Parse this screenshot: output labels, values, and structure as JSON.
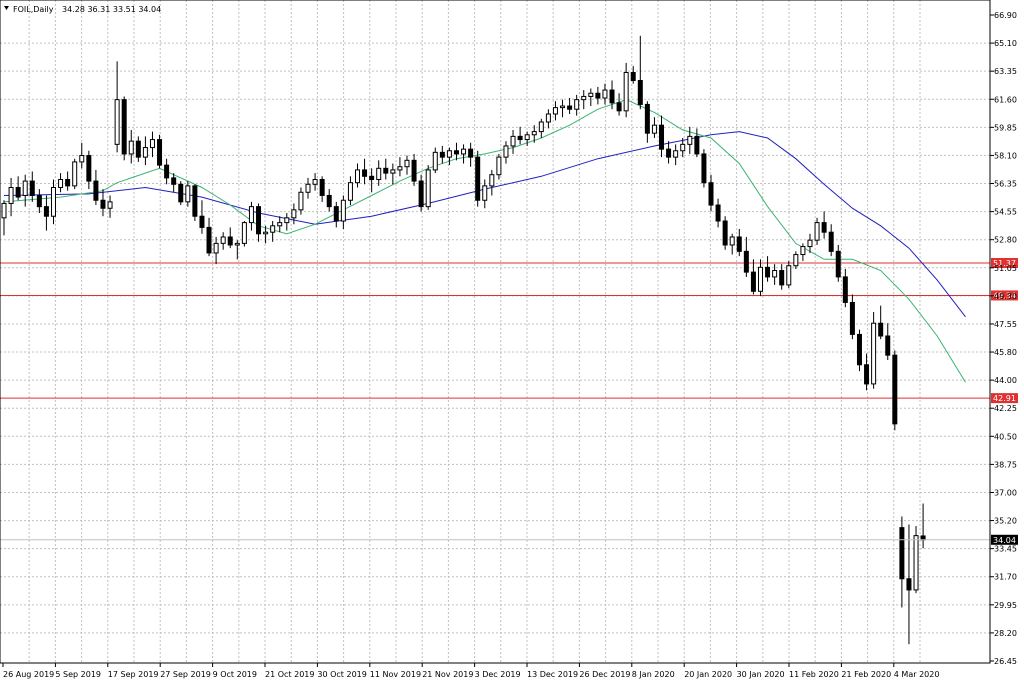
{
  "header": {
    "symbol_tf": "FOIL,Daily",
    "ohlc": "34.28 36.31 33.51 34.04"
  },
  "colors": {
    "background": "#ffffff",
    "grid": "#c0c0c0",
    "bull_body": "#ffffff",
    "bear_body": "#000000",
    "ma_fast": "#3cb371",
    "ma_slow": "#2020c0",
    "level_line": "#e03030",
    "current_price_line": "#c0c0c0",
    "current_price_label_bg": "#000000"
  },
  "chart_data": {
    "type": "candlestick",
    "ylim": [
      26.45,
      66.9
    ],
    "y_ticks": [
      "66.90",
      "65.10",
      "63.35",
      "61.60",
      "59.85",
      "58.10",
      "56.35",
      "54.55",
      "52.80",
      "51.05",
      "49.30",
      "47.55",
      "45.80",
      "44.00",
      "42.25",
      "40.50",
      "38.75",
      "37.00",
      "35.20",
      "33.45",
      "31.70",
      "29.95",
      "28.20",
      "26.45"
    ],
    "x_labels": [
      "26 Aug 2019",
      "5 Sep 2019",
      "17 Sep 2019",
      "27 Sep 2019",
      "9 Oct 2019",
      "21 Oct 2019",
      "30 Oct 2019",
      "11 Nov 2019",
      "21 Nov 2019",
      "3 Dec 2019",
      "13 Dec 2019",
      "26 Dec 2019",
      "8 Jan 2020",
      "20 Jan 2020",
      "30 Jan 2020",
      "11 Feb 2020",
      "21 Feb 2020",
      "4 Mar 2020"
    ],
    "grid": true,
    "levels": [
      {
        "value": 51.37,
        "label": "51.37"
      },
      {
        "value": 49.34,
        "label": "49.34"
      },
      {
        "value": 42.91,
        "label": "42.91"
      }
    ],
    "current_price": {
      "value": 34.04,
      "label": "34.04"
    },
    "candles": [
      [
        54.2,
        55.3,
        53.1,
        55.1
      ],
      [
        55.1,
        56.7,
        54.3,
        56.1
      ],
      [
        56.1,
        56.8,
        55.3,
        55.5
      ],
      [
        55.6,
        56.9,
        54.9,
        56.5
      ],
      [
        56.5,
        57.1,
        55.2,
        55.6
      ],
      [
        55.6,
        56.0,
        54.5,
        54.9
      ],
      [
        54.9,
        55.6,
        53.4,
        54.3
      ],
      [
        54.3,
        56.6,
        53.8,
        56.1
      ],
      [
        56.1,
        57.0,
        55.8,
        56.6
      ],
      [
        56.6,
        57.1,
        55.9,
        56.2
      ],
      [
        56.2,
        57.9,
        56.0,
        57.7
      ],
      [
        57.7,
        58.9,
        57.3,
        58.1
      ],
      [
        58.1,
        58.4,
        56.0,
        56.5
      ],
      [
        56.5,
        57.2,
        55.0,
        55.3
      ],
      [
        55.3,
        56.0,
        54.3,
        54.8
      ],
      [
        54.8,
        55.6,
        54.2,
        55.2
      ],
      [
        58.8,
        64.0,
        58.3,
        61.6
      ],
      [
        61.6,
        61.8,
        57.8,
        58.2
      ],
      [
        58.2,
        59.7,
        57.6,
        59.0
      ],
      [
        59.0,
        59.3,
        57.7,
        58.0
      ],
      [
        58.0,
        59.3,
        57.5,
        58.6
      ],
      [
        58.6,
        59.6,
        58.0,
        59.1
      ],
      [
        59.1,
        59.4,
        57.3,
        57.5
      ],
      [
        57.5,
        57.9,
        56.3,
        56.7
      ],
      [
        56.7,
        57.0,
        55.8,
        56.3
      ],
      [
        56.3,
        56.5,
        55.0,
        55.2
      ],
      [
        55.2,
        56.5,
        54.9,
        56.2
      ],
      [
        56.2,
        56.3,
        54.0,
        54.3
      ],
      [
        54.3,
        55.3,
        53.2,
        53.6
      ],
      [
        53.6,
        54.2,
        51.8,
        52.0
      ],
      [
        52.0,
        53.0,
        51.3,
        52.6
      ],
      [
        52.6,
        53.3,
        52.2,
        53.0
      ],
      [
        53.0,
        53.6,
        52.3,
        52.5
      ],
      [
        52.5,
        52.8,
        51.6,
        52.6
      ],
      [
        52.6,
        54.0,
        52.4,
        53.9
      ],
      [
        53.9,
        55.2,
        53.4,
        54.9
      ],
      [
        54.9,
        55.1,
        52.7,
        53.2
      ],
      [
        53.2,
        53.7,
        52.6,
        53.3
      ],
      [
        53.3,
        54.0,
        52.7,
        53.7
      ],
      [
        53.7,
        54.3,
        53.3,
        53.9
      ],
      [
        53.9,
        54.5,
        53.4,
        54.2
      ],
      [
        54.2,
        55.1,
        53.8,
        54.7
      ],
      [
        54.7,
        56.1,
        54.4,
        55.8
      ],
      [
        55.8,
        56.7,
        55.4,
        56.3
      ],
      [
        56.3,
        57.0,
        55.9,
        56.6
      ],
      [
        56.6,
        56.8,
        55.2,
        55.6
      ],
      [
        55.6,
        56.0,
        54.6,
        54.9
      ],
      [
        54.9,
        55.2,
        53.6,
        54.0
      ],
      [
        54.0,
        55.6,
        53.5,
        55.3
      ],
      [
        55.3,
        56.8,
        55.0,
        56.4
      ],
      [
        56.4,
        57.6,
        56.1,
        57.2
      ],
      [
        57.2,
        57.9,
        56.3,
        56.8
      ],
      [
        56.8,
        57.3,
        55.8,
        56.6
      ],
      [
        56.6,
        57.8,
        56.2,
        57.3
      ],
      [
        57.3,
        57.9,
        56.6,
        57.0
      ],
      [
        57.0,
        57.6,
        56.3,
        57.2
      ],
      [
        57.2,
        58.0,
        56.8,
        57.4
      ],
      [
        57.4,
        58.1,
        56.9,
        57.8
      ],
      [
        57.8,
        58.2,
        56.2,
        56.5
      ],
      [
        56.5,
        56.9,
        54.6,
        54.9
      ],
      [
        54.9,
        57.5,
        54.7,
        57.2
      ],
      [
        57.2,
        58.6,
        57.0,
        58.3
      ],
      [
        58.3,
        58.7,
        57.6,
        58.0
      ],
      [
        58.0,
        58.6,
        57.5,
        58.4
      ],
      [
        58.4,
        58.9,
        57.8,
        58.2
      ],
      [
        58.2,
        58.8,
        57.6,
        58.5
      ],
      [
        58.5,
        58.9,
        57.4,
        58.0
      ],
      [
        58.0,
        58.4,
        54.9,
        55.3
      ],
      [
        55.3,
        56.6,
        54.8,
        56.2
      ],
      [
        56.2,
        57.2,
        55.6,
        56.9
      ],
      [
        56.9,
        58.2,
        56.6,
        58.0
      ],
      [
        58.0,
        59.0,
        57.6,
        58.7
      ],
      [
        58.7,
        59.7,
        58.2,
        59.3
      ],
      [
        59.3,
        59.9,
        58.8,
        59.1
      ],
      [
        59.1,
        59.6,
        58.7,
        59.4
      ],
      [
        59.4,
        60.0,
        58.9,
        59.6
      ],
      [
        59.6,
        60.4,
        59.2,
        60.2
      ],
      [
        60.2,
        61.0,
        59.8,
        60.7
      ],
      [
        60.7,
        61.5,
        60.3,
        61.1
      ],
      [
        61.1,
        61.6,
        60.5,
        61.2
      ],
      [
        61.2,
        61.7,
        60.7,
        61.0
      ],
      [
        61.0,
        61.9,
        60.6,
        61.6
      ],
      [
        61.6,
        62.2,
        61.0,
        61.8
      ],
      [
        61.8,
        62.3,
        61.2,
        62.0
      ],
      [
        62.0,
        62.4,
        61.3,
        61.7
      ],
      [
        61.7,
        62.6,
        61.3,
        62.2
      ],
      [
        62.2,
        62.8,
        61.0,
        61.4
      ],
      [
        61.4,
        62.0,
        60.6,
        60.9
      ],
      [
        60.9,
        63.9,
        60.5,
        63.3
      ],
      [
        63.3,
        63.7,
        62.6,
        62.8
      ],
      [
        62.8,
        65.6,
        61.0,
        61.3
      ],
      [
        61.3,
        61.5,
        58.9,
        59.5
      ],
      [
        59.5,
        60.5,
        59.2,
        60.0
      ],
      [
        60.0,
        60.6,
        58.0,
        58.5
      ],
      [
        58.5,
        59.0,
        57.6,
        58.0
      ],
      [
        58.0,
        58.8,
        57.5,
        58.4
      ],
      [
        58.4,
        59.2,
        58.0,
        58.8
      ],
      [
        58.8,
        59.9,
        58.2,
        59.3
      ],
      [
        59.3,
        59.8,
        58.0,
        58.2
      ],
      [
        58.2,
        58.5,
        56.1,
        56.4
      ],
      [
        56.4,
        56.9,
        54.6,
        55.0
      ],
      [
        55.0,
        55.4,
        53.6,
        54.0
      ],
      [
        54.0,
        54.3,
        52.2,
        52.5
      ],
      [
        52.5,
        53.2,
        51.9,
        53.0
      ],
      [
        53.0,
        53.5,
        51.8,
        52.1
      ],
      [
        52.1,
        53.0,
        50.5,
        50.8
      ],
      [
        50.8,
        51.6,
        49.4,
        49.6
      ],
      [
        49.6,
        51.6,
        49.3,
        51.1
      ],
      [
        51.1,
        51.8,
        50.2,
        50.5
      ],
      [
        50.5,
        51.3,
        50.0,
        50.9
      ],
      [
        50.9,
        51.3,
        49.7,
        50.0
      ],
      [
        50.0,
        51.5,
        49.8,
        51.2
      ],
      [
        51.2,
        52.1,
        51.0,
        51.9
      ],
      [
        51.9,
        52.6,
        51.5,
        52.4
      ],
      [
        52.4,
        53.2,
        52.0,
        52.8
      ],
      [
        52.8,
        54.2,
        52.5,
        53.9
      ],
      [
        53.9,
        54.6,
        52.9,
        53.3
      ],
      [
        53.3,
        53.8,
        51.8,
        52.1
      ],
      [
        52.1,
        52.5,
        50.2,
        50.5
      ],
      [
        50.5,
        51.0,
        48.6,
        48.9
      ],
      [
        48.9,
        49.4,
        46.6,
        46.9
      ],
      [
        46.9,
        47.2,
        44.6,
        45.0
      ],
      [
        45.0,
        45.7,
        43.4,
        43.8
      ],
      [
        43.8,
        48.3,
        43.5,
        47.6
      ],
      [
        47.6,
        48.7,
        46.6,
        46.8
      ],
      [
        46.8,
        47.6,
        45.3,
        45.6
      ],
      [
        45.6,
        45.9,
        40.9,
        41.3
      ],
      [
        34.8,
        35.5,
        29.8,
        31.6
      ],
      [
        31.6,
        35.0,
        27.5,
        30.9
      ],
      [
        30.9,
        34.9,
        30.7,
        34.3
      ],
      [
        34.28,
        36.31,
        33.51,
        34.04
      ]
    ],
    "ma_fast": [
      [
        0,
        55.2
      ],
      [
        8,
        55.5
      ],
      [
        14,
        55.9
      ],
      [
        16,
        56.4
      ],
      [
        22,
        57.3
      ],
      [
        28,
        56.1
      ],
      [
        32,
        55.0
      ],
      [
        36,
        53.7
      ],
      [
        40,
        53.2
      ],
      [
        44,
        53.8
      ],
      [
        48,
        54.7
      ],
      [
        52,
        55.6
      ],
      [
        56,
        56.5
      ],
      [
        60,
        57.3
      ],
      [
        64,
        57.9
      ],
      [
        68,
        58.2
      ],
      [
        72,
        58.6
      ],
      [
        76,
        59.2
      ],
      [
        80,
        60.0
      ],
      [
        84,
        61.0
      ],
      [
        88,
        61.6
      ],
      [
        92,
        60.8
      ],
      [
        96,
        59.7
      ],
      [
        100,
        59.2
      ],
      [
        104,
        57.6
      ],
      [
        108,
        54.9
      ],
      [
        112,
        52.6
      ],
      [
        116,
        51.6
      ],
      [
        120,
        51.6
      ],
      [
        124,
        50.9
      ],
      [
        128,
        49.1
      ],
      [
        132,
        46.8
      ],
      [
        136,
        43.9
      ]
    ],
    "ma_slow": [
      [
        0,
        55.6
      ],
      [
        12,
        55.7
      ],
      [
        20,
        56.1
      ],
      [
        28,
        55.5
      ],
      [
        36,
        54.5
      ],
      [
        44,
        53.8
      ],
      [
        52,
        54.3
      ],
      [
        60,
        55.1
      ],
      [
        68,
        56.0
      ],
      [
        76,
        56.8
      ],
      [
        84,
        57.9
      ],
      [
        92,
        58.7
      ],
      [
        100,
        59.4
      ],
      [
        104,
        59.6
      ],
      [
        108,
        59.2
      ],
      [
        112,
        57.9
      ],
      [
        116,
        56.3
      ],
      [
        120,
        54.8
      ],
      [
        124,
        53.7
      ],
      [
        128,
        52.3
      ],
      [
        132,
        50.3
      ],
      [
        136,
        48.0
      ]
    ]
  }
}
